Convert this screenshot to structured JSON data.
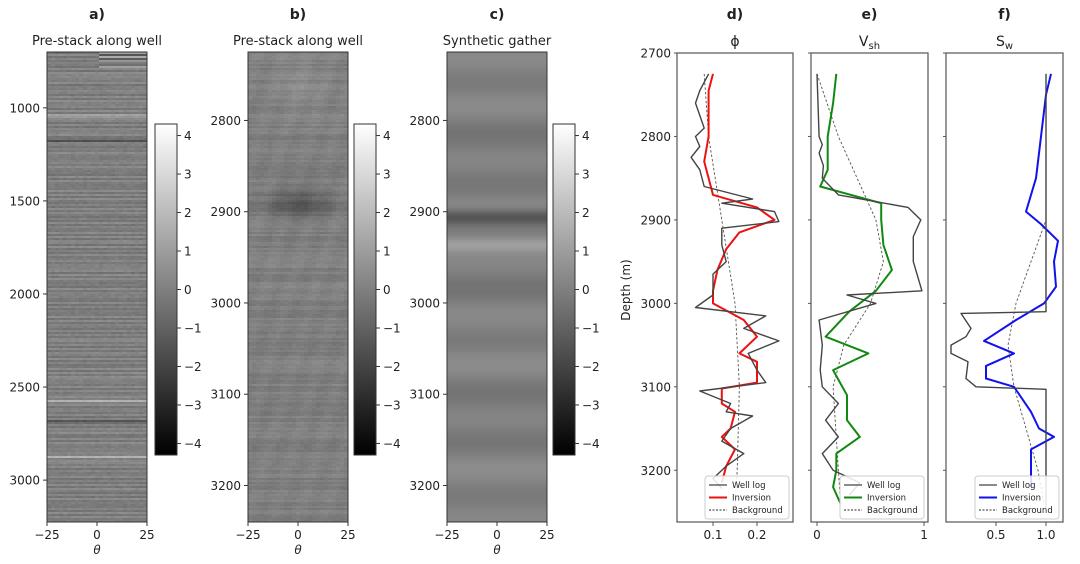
{
  "chart_data": [
    {
      "type": "heatmap",
      "panel": "a)",
      "title": "Pre-stack along well",
      "xlabel": "θ",
      "xticks": [
        "−25",
        "0",
        "25"
      ],
      "xlim": [
        -25,
        25
      ],
      "ylim": [
        3225,
        700
      ],
      "yticks": [
        "1000",
        "1500",
        "2000",
        "2500",
        "3000"
      ],
      "ytick_values": [
        1000,
        1500,
        2000,
        2500,
        3000
      ],
      "colorbar_ticks": [
        "4",
        "3",
        "2",
        "1",
        "0",
        "−1",
        "−2",
        "−3",
        "−4"
      ],
      "clim": [
        -4.3,
        4.3
      ],
      "strong_events": [
        1040,
        1170,
        2570,
        2680,
        2870
      ]
    },
    {
      "type": "heatmap",
      "panel": "b)",
      "title": "Pre-stack along well",
      "xlabel": "θ",
      "xticks": [
        "−25",
        "0",
        "25"
      ],
      "xlim": [
        -25,
        25
      ],
      "ylim": [
        3240,
        2725
      ],
      "yticks": [
        "2800",
        "2900",
        "3000",
        "3100",
        "3200"
      ],
      "ytick_values": [
        2800,
        2900,
        3000,
        3100,
        3200
      ],
      "colorbar_ticks": [
        "4",
        "3",
        "2",
        "1",
        "0",
        "−1",
        "−2",
        "−3",
        "−4"
      ],
      "clim": [
        -4.3,
        4.3
      ],
      "strong_events": [
        2890
      ]
    },
    {
      "type": "heatmap",
      "panel": "c)",
      "title": "Synthetic gather",
      "xlabel": "θ",
      "xticks": [
        "−25",
        "0",
        "25"
      ],
      "xlim": [
        -25,
        25
      ],
      "ylim": [
        3240,
        2725
      ],
      "yticks": [
        "2800",
        "2900",
        "3000",
        "3100",
        "3200"
      ],
      "ytick_values": [
        2800,
        2900,
        3000,
        3100,
        3200
      ],
      "colorbar_ticks": [
        "4",
        "3",
        "2",
        "1",
        "0",
        "−1",
        "−2",
        "−3",
        "−4"
      ],
      "clim": [
        -4.3,
        4.3
      ],
      "strong_events": [
        2905,
        2935
      ]
    },
    {
      "type": "line",
      "panel": "d)",
      "title": "ϕ",
      "ylabel": "Depth (m)",
      "xlim": [
        0.018,
        0.282
      ],
      "ylim": [
        3262,
        2700
      ],
      "xticks": [
        "0.1",
        "0.2"
      ],
      "xtick_values": [
        0.1,
        0.2
      ],
      "yticks": [
        "2700",
        "2800",
        "2900",
        "3000",
        "3100",
        "3200"
      ],
      "ytick_values": [
        2700,
        2800,
        2900,
        3000,
        3100,
        3200
      ],
      "legend": [
        "Well log",
        "Inversion",
        "Background"
      ],
      "legend_placement": "lower-right",
      "series": [
        {
          "name": "Well log",
          "color": "#444444",
          "points": [
            [
              2725,
              0.09
            ],
            [
              2745,
              0.07
            ],
            [
              2760,
              0.06
            ],
            [
              2790,
              0.08
            ],
            [
              2800,
              0.06
            ],
            [
              2812,
              0.07
            ],
            [
              2825,
              0.05
            ],
            [
              2840,
              0.07
            ],
            [
              2860,
              0.08
            ],
            [
              2875,
              0.19
            ],
            [
              2880,
              0.12
            ],
            [
              2890,
              0.24
            ],
            [
              2902,
              0.25
            ],
            [
              2910,
              0.12
            ],
            [
              2930,
              0.12
            ],
            [
              2950,
              0.13
            ],
            [
              2965,
              0.1
            ],
            [
              2990,
              0.1
            ],
            [
              3005,
              0.06
            ],
            [
              3015,
              0.22
            ],
            [
              3030,
              0.17
            ],
            [
              3045,
              0.25
            ],
            [
              3060,
              0.18
            ],
            [
              3080,
              0.2
            ],
            [
              3095,
              0.22
            ],
            [
              3105,
              0.07
            ],
            [
              3120,
              0.14
            ],
            [
              3130,
              0.13
            ],
            [
              3135,
              0.19
            ],
            [
              3150,
              0.14
            ],
            [
              3165,
              0.12
            ],
            [
              3180,
              0.17
            ],
            [
              3195,
              0.13
            ],
            [
              3210,
              0.1
            ],
            [
              3222,
              0.12
            ]
          ]
        },
        {
          "name": "Inversion",
          "color": "#ee1111",
          "points": [
            [
              2725,
              0.1
            ],
            [
              2745,
              0.09
            ],
            [
              2800,
              0.09
            ],
            [
              2830,
              0.08
            ],
            [
              2870,
              0.1
            ],
            [
              2885,
              0.2
            ],
            [
              2900,
              0.24
            ],
            [
              2915,
              0.16
            ],
            [
              2935,
              0.13
            ],
            [
              2960,
              0.11
            ],
            [
              2985,
              0.1
            ],
            [
              3000,
              0.1
            ],
            [
              3020,
              0.17
            ],
            [
              3040,
              0.2
            ],
            [
              3060,
              0.16
            ],
            [
              3070,
              0.2
            ],
            [
              3095,
              0.2
            ],
            [
              3102,
              0.12
            ],
            [
              3120,
              0.12
            ],
            [
              3130,
              0.15
            ],
            [
              3150,
              0.14
            ],
            [
              3160,
              0.12
            ],
            [
              3175,
              0.15
            ],
            [
              3195,
              0.13
            ],
            [
              3215,
              0.12
            ]
          ]
        },
        {
          "name": "Background",
          "color": "#555555",
          "dash": true,
          "points": [
            [
              2725,
              0.08
            ],
            [
              2800,
              0.09
            ],
            [
              2900,
              0.12
            ],
            [
              3000,
              0.15
            ],
            [
              3100,
              0.16
            ],
            [
              3200,
              0.155
            ],
            [
              3245,
              0.15
            ]
          ]
        }
      ]
    },
    {
      "type": "line",
      "panel": "e)",
      "title": "V",
      "title_sub": "sh",
      "xlim": [
        -0.056,
        1.037
      ],
      "ylim": [
        3262,
        2700
      ],
      "xticks": [
        "0",
        "1"
      ],
      "xtick_values": [
        0,
        1
      ],
      "legend": [
        "Well log",
        "Inversion",
        "Background"
      ],
      "legend_placement": "lower-right",
      "series": [
        {
          "name": "Well log",
          "color": "#444444",
          "points": [
            [
              2725,
              0.0
            ],
            [
              2800,
              0.02
            ],
            [
              2810,
              0.05
            ],
            [
              2820,
              0.02
            ],
            [
              2835,
              0.06
            ],
            [
              2850,
              0.05
            ],
            [
              2870,
              0.2
            ],
            [
              2885,
              0.85
            ],
            [
              2900,
              0.97
            ],
            [
              2920,
              0.9
            ],
            [
              2950,
              0.9
            ],
            [
              2985,
              0.98
            ],
            [
              2990,
              0.28
            ],
            [
              3000,
              0.55
            ],
            [
              3020,
              0.02
            ],
            [
              3050,
              0.05
            ],
            [
              3080,
              0.03
            ],
            [
              3100,
              0.05
            ],
            [
              3120,
              0.2
            ],
            [
              3140,
              0.08
            ],
            [
              3160,
              0.2
            ],
            [
              3180,
              0.05
            ],
            [
              3200,
              0.15
            ],
            [
              3215,
              0.4
            ],
            [
              3230,
              0.3
            ]
          ]
        },
        {
          "name": "Inversion",
          "color": "#118811",
          "points": [
            [
              2725,
              0.18
            ],
            [
              2760,
              0.15
            ],
            [
              2800,
              0.1
            ],
            [
              2840,
              0.1
            ],
            [
              2860,
              0.03
            ],
            [
              2880,
              0.6
            ],
            [
              2900,
              0.6
            ],
            [
              2930,
              0.62
            ],
            [
              2960,
              0.7
            ],
            [
              2985,
              0.55
            ],
            [
              3010,
              0.3
            ],
            [
              3040,
              0.08
            ],
            [
              3060,
              0.48
            ],
            [
              3080,
              0.15
            ],
            [
              3110,
              0.28
            ],
            [
              3140,
              0.28
            ],
            [
              3160,
              0.4
            ],
            [
              3180,
              0.18
            ],
            [
              3200,
              0.18
            ],
            [
              3220,
              0.15
            ],
            [
              3240,
              0.22
            ]
          ]
        },
        {
          "name": "Background",
          "color": "#555555",
          "dash": true,
          "points": [
            [
              2725,
              0.0
            ],
            [
              2800,
              0.2
            ],
            [
              2900,
              0.55
            ],
            [
              2950,
              0.62
            ],
            [
              3000,
              0.5
            ],
            [
              3050,
              0.25
            ],
            [
              3100,
              0.15
            ],
            [
              3200,
              0.2
            ],
            [
              3240,
              0.22
            ]
          ]
        }
      ]
    },
    {
      "type": "line",
      "panel": "f)",
      "title": "S",
      "title_sub": "w",
      "xlim": [
        0,
        1.17
      ],
      "ylim": [
        3262,
        2700
      ],
      "xticks": [
        "0.5",
        "1.0"
      ],
      "xtick_values": [
        0.5,
        1.0
      ],
      "legend": [
        "Well log",
        "Inversion",
        "Background"
      ],
      "legend_placement": "lower-right",
      "series": [
        {
          "name": "Well log",
          "color": "#444444",
          "points": [
            [
              2725,
              1.0
            ],
            [
              3010,
              1.0
            ],
            [
              3012,
              0.15
            ],
            [
              3030,
              0.25
            ],
            [
              3040,
              0.2
            ],
            [
              3050,
              0.05
            ],
            [
              3060,
              0.05
            ],
            [
              3070,
              0.22
            ],
            [
              3090,
              0.2
            ],
            [
              3100,
              0.3
            ],
            [
              3103,
              1.0
            ],
            [
              3245,
              1.0
            ]
          ]
        },
        {
          "name": "Inversion",
          "color": "#1111ee",
          "points": [
            [
              2725,
              1.05
            ],
            [
              2750,
              1.0
            ],
            [
              2800,
              0.95
            ],
            [
              2850,
              0.9
            ],
            [
              2890,
              0.8
            ],
            [
              2905,
              0.95
            ],
            [
              2925,
              1.12
            ],
            [
              2950,
              1.08
            ],
            [
              2980,
              1.1
            ],
            [
              3000,
              0.98
            ],
            [
              3020,
              0.7
            ],
            [
              3045,
              0.38
            ],
            [
              3060,
              0.68
            ],
            [
              3075,
              0.4
            ],
            [
              3090,
              0.4
            ],
            [
              3100,
              0.68
            ],
            [
              3130,
              0.85
            ],
            [
              3150,
              0.93
            ],
            [
              3160,
              1.08
            ],
            [
              3175,
              0.85
            ],
            [
              3200,
              0.85
            ],
            [
              3220,
              0.85
            ]
          ]
        },
        {
          "name": "Background",
          "color": "#555555",
          "dash": true,
          "points": [
            [
              2725,
              1.0
            ],
            [
              2900,
              1.0
            ],
            [
              2950,
              0.85
            ],
            [
              3000,
              0.7
            ],
            [
              3050,
              0.62
            ],
            [
              3100,
              0.68
            ],
            [
              3150,
              0.8
            ],
            [
              3200,
              0.92
            ],
            [
              3240,
              0.98
            ]
          ]
        }
      ]
    }
  ]
}
